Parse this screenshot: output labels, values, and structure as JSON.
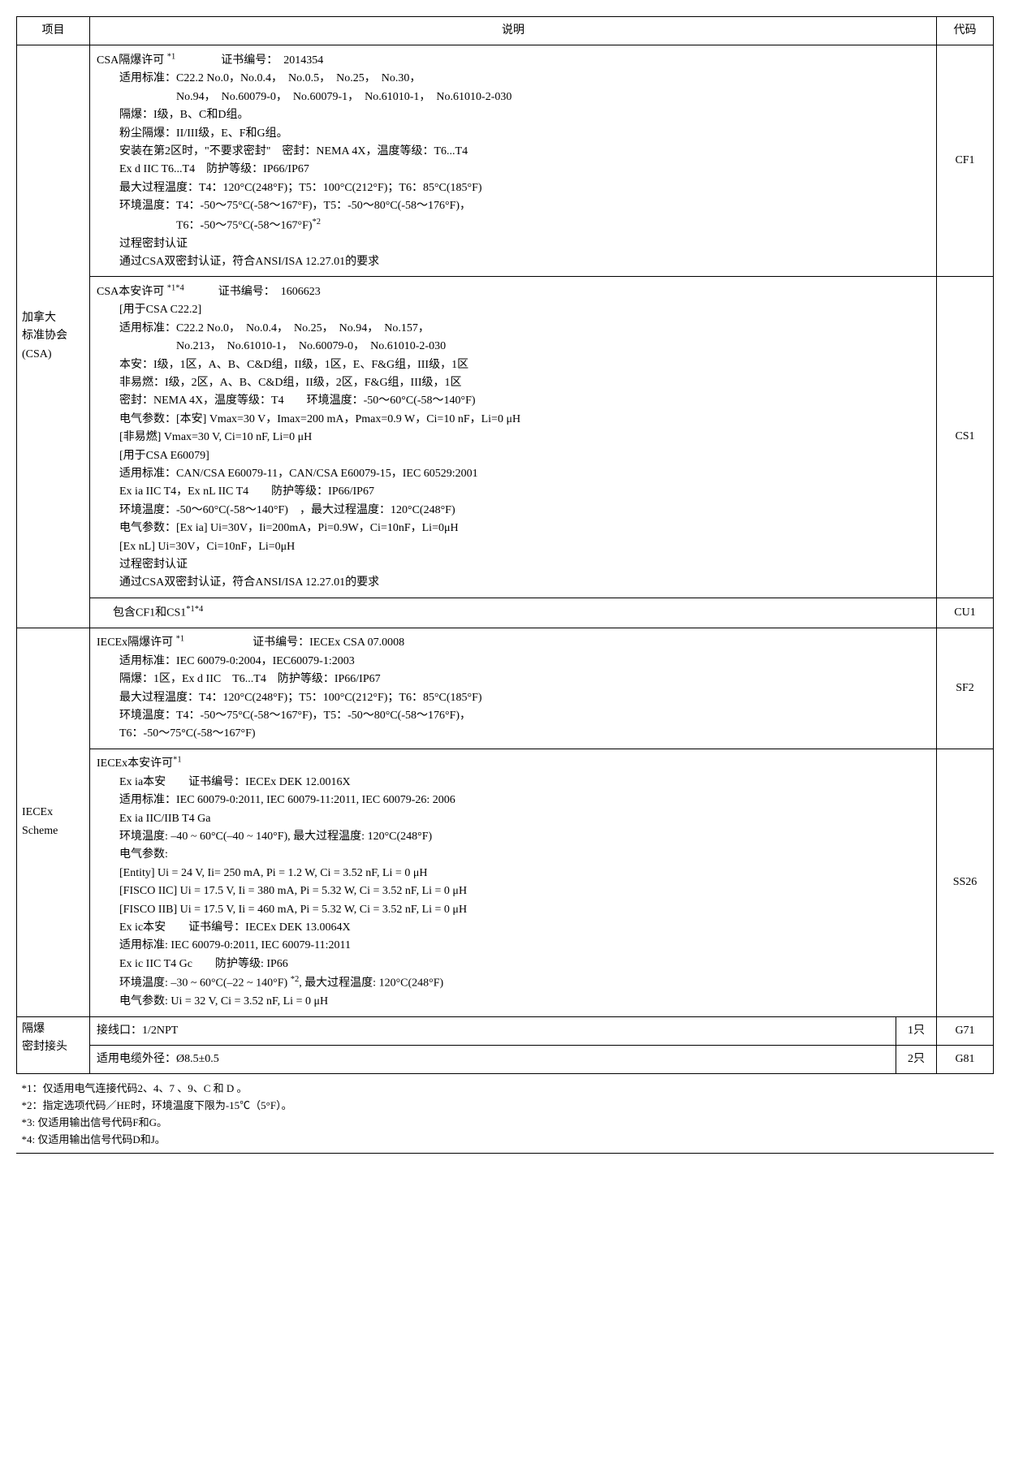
{
  "headers": {
    "project": "项目",
    "desc": "说明",
    "code": "代码"
  },
  "rows": {
    "csa": {
      "label": "加拿大<br>标准协会<br>(CSA)",
      "cf1": {
        "title": "CSA隔爆许可 <sup>*1</sup>　　　　证书编号：　2014354",
        "l1": "适用标准：C22.2 No.0，No.0.4，　No.0.5，　No.25，　No.30，",
        "l1b": "No.94，　No.60079-0，　No.60079-1，　No.61010-1，　No.61010-2-030",
        "l2": "隔爆：I级，B、C和D组。",
        "l3": "粉尘隔爆：II/III级，E、F和G组。",
        "l4": "安装在第2区时，\"不要求密封\"　密封：NEMA 4X，温度等级：T6...T4",
        "l5": "Ex d IIC T6...T4　防护等级：IP66/IP67",
        "l6": "最大过程温度：T4：120°C(248°F)；T5：100°C(212°F)；T6：85°C(185°F)",
        "l7": "环境温度：T4：-50～75°C(-58～167°F)，T5：-50～80°C(-58～176°F)，",
        "l7b": "T6：-50～75°C(-58～167°F)<sup>*2</sup>",
        "l8": "过程密封认证",
        "l9": "通过CSA双密封认证，符合ANSI/ISA 12.27.01的要求",
        "code": "CF1"
      },
      "cs1": {
        "title": "CSA本安许可 <sup>*1*4</sup>　　　证书编号：　1606623",
        "l1": "[用于CSA C22.2]",
        "l2": "适用标准：C22.2 No.0，　No.0.4，　No.25，　No.94，　No.157，",
        "l2b": "No.213，　No.61010-1，　No.60079-0，　No.61010-2-030",
        "l3": "本安：I级，1区，A、B、C&D组，II级，1区，E、F&G组，III级，1区",
        "l4": "非易燃：I级，2区，A、B、C&D组，II级，2区，F&G组，III级，1区",
        "l5": "密封：NEMA 4X，温度等级：T4　　环境温度：-50～60°C(-58～140°F)",
        "l6": "电气参数：[本安] Vmax=30 V，Imax=200 mA，Pmax=0.9 W，Ci=10 nF，Li=0 μH",
        "l7": "[非易燃] Vmax=30 V, Ci=10 nF, Li=0 μH",
        "l8": "[用于CSA E60079]",
        "l9": "适用标准：CAN/CSA E60079-11，CAN/CSA E60079-15，IEC 60529:2001",
        "l10": "Ex ia IIC T4，Ex nL IIC T4　　防护等级：IP66/IP67",
        "l11": "环境温度：-50～60°C(-58～140°F)　，最大过程温度：120°C(248°F)",
        "l12": "电气参数：[Ex ia] Ui=30V，Ii=200mA，Pi=0.9W，Ci=10nF，Li=0μH",
        "l13": "[Ex nL] Ui=30V，Ci=10nF，Li=0μH",
        "l14": "过程密封认证",
        "l15": "通过CSA双密封认证，符合ANSI/ISA 12.27.01的要求",
        "code": "CS1"
      },
      "cu1": {
        "desc": "包含CF1和CS1<sup>*1*4</sup>",
        "code": "CU1"
      }
    },
    "iecex": {
      "label": "IECEx<br>Scheme",
      "sf2": {
        "title": "IECEx隔爆许可 <sup>*1</sup>　　　　　　证书编号：IECEx CSA 07.0008",
        "l1": "适用标准：IEC 60079-0:2004，IEC60079-1:2003",
        "l2": "隔爆：1区，Ex d IIC　T6...T4　防护等级：IP66/IP67",
        "l3": "最大过程温度：T4：120°C(248°F)；T5：100°C(212°F)；T6：85°C(185°F)",
        "l4": "环境温度：T4：-50～75°C(-58～167°F)，T5：-50～80°C(-58～176°F)，",
        "l5": "T6：-50～75°C(-58～167°F)",
        "code": "SF2"
      },
      "ss26": {
        "title": "IECEx本安许可<sup>*1</sup>",
        "l1": "Ex ia本安　　证书编号：IECEx DEK 12.0016X",
        "l2": "适用标准：IEC 60079-0:2011, IEC 60079-11:2011, IEC 60079-26: 2006",
        "l3": "Ex ia IIC/IIB T4 Ga",
        "l4": "环境温度: –40 ~ 60°C(–40 ~ 140°F), 最大过程温度: 120°C(248°F)",
        "l5": "电气参数:",
        "l6": "[Entity] Ui = 24 V, Ii= 250 mA, Pi = 1.2 W, Ci = 3.52 nF, Li = 0 μH",
        "l7": "[FISCO IIC] Ui = 17.5 V, Ii = 380 mA, Pi = 5.32 W, Ci = 3.52 nF, Li = 0 μH",
        "l8": "[FISCO IIB] Ui = 17.5 V, Ii = 460 mA, Pi = 5.32 W, Ci = 3.52 nF, Li = 0 μH",
        "l9": "Ex ic本安　　证书编号：IECEx DEK 13.0064X",
        "l10": "适用标准: IEC 60079-0:2011, IEC 60079-11:2011",
        "l11": "Ex ic IIC T4 Gc　　防护等级: IP66",
        "l12": "环境温度: –30 ~ 60°C(–22 ~ 140°F) <sup>*2</sup>, 最大过程温度: 120°C(248°F)",
        "l13": "电气参数: Ui = 32 V, Ci = 3.52 nF, Li = 0 μH",
        "code": "SS26"
      }
    },
    "seal": {
      "label": "隔爆<br>密封接头",
      "r1": {
        "desc": "接线口：1/2NPT",
        "qty": "1只",
        "code": "G71"
      },
      "r2": {
        "desc": "适用电缆外径：Ø8.5±0.5",
        "qty": "2只",
        "code": "G81"
      }
    }
  },
  "footnotes": {
    "n1": "*1：仅适用电气连接代码2、4、7 、9、C 和 D 。",
    "n2": "*2：指定选项代码／HE时，环境温度下限为-15℃（5°F）。",
    "n3": "*3: 仅适用输出信号代码F和G。",
    "n4": "*4: 仅适用输出信号代码D和J。"
  }
}
